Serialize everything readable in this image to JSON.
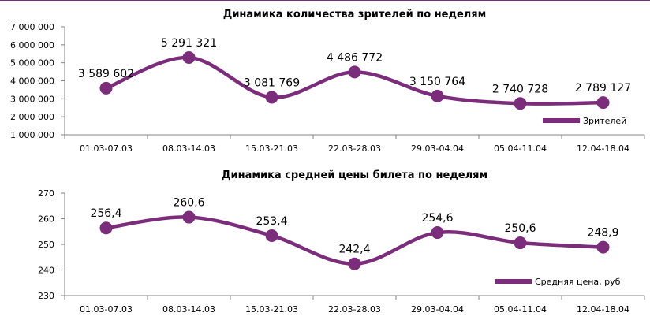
{
  "colors": {
    "series": "#7B2C7B",
    "axis": "#868686"
  },
  "chart_data": [
    {
      "type": "line",
      "title": "Динамика количества зрителей по неделям",
      "categories": [
        "01.03-07.03",
        "08.03-14.03",
        "15.03-21.03",
        "22.03-28.03",
        "29.03-04.04",
        "05.04-11.04",
        "12.04-18.04"
      ],
      "series": [
        {
          "name": "Зрителей",
          "values": [
            3589602,
            5291321,
            3081769,
            4486772,
            3150764,
            2740728,
            2789127
          ],
          "labels": [
            "3 589 602",
            "5 291 321",
            "3 081 769",
            "4 486 772",
            "3 150 764",
            "2 740 728",
            "2 789 127"
          ]
        }
      ],
      "ylim": [
        1000000,
        7000000
      ],
      "yticks": [
        1000000,
        2000000,
        3000000,
        4000000,
        5000000,
        6000000,
        7000000
      ],
      "ytick_labels": [
        "1 000 000",
        "2 000 000",
        "3 000 000",
        "4 000 000",
        "5 000 000",
        "6 000 000",
        "7 000 000"
      ],
      "legend": "bottom-right",
      "grid": false,
      "smooth": true
    },
    {
      "type": "line",
      "title": "Динамика средней цены билета по неделям",
      "categories": [
        "01.03-07.03",
        "08.03-14.03",
        "15.03-21.03",
        "22.03-28.03",
        "29.03-04.04",
        "05.04-11.04",
        "12.04-18.04"
      ],
      "series": [
        {
          "name": "Средняя цена, руб",
          "values": [
            256.4,
            260.6,
            253.4,
            242.4,
            254.6,
            250.6,
            248.9
          ],
          "labels": [
            "256,4",
            "260,6",
            "253,4",
            "242,4",
            "254,6",
            "250,6",
            "248,9"
          ]
        }
      ],
      "ylim": [
        230,
        270
      ],
      "yticks": [
        230,
        240,
        250,
        260,
        270
      ],
      "ytick_labels": [
        "230",
        "240",
        "250",
        "260",
        "270"
      ],
      "legend": "bottom-right",
      "grid": false,
      "smooth": true
    }
  ]
}
